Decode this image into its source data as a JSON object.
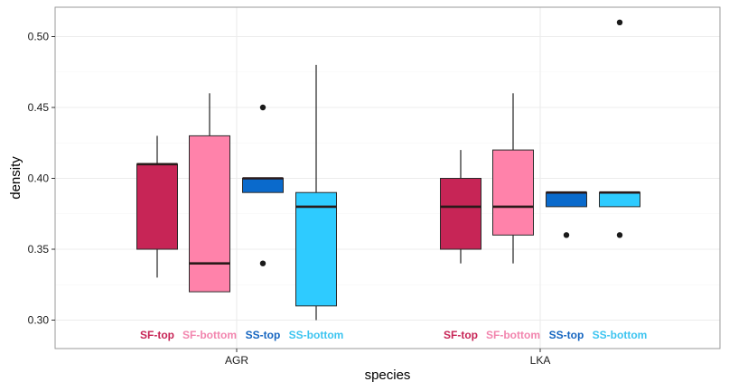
{
  "chart_data": {
    "type": "boxplot",
    "title": "",
    "xlabel": "species",
    "ylabel": "density",
    "categories": [
      "AGR",
      "LKA"
    ],
    "ylim": [
      0.28,
      0.52
    ],
    "yticks": [
      0.3,
      0.35,
      0.4,
      0.45,
      0.5
    ],
    "ytick_labels": [
      "0.30",
      "0.35",
      "0.40",
      "0.45",
      "0.50"
    ],
    "grid": true,
    "series": [
      {
        "name": "SF-top",
        "color": "#C72556",
        "boxes": [
          {
            "category": "AGR",
            "lower_whisker": 0.33,
            "q1": 0.35,
            "median": 0.41,
            "q3": 0.41,
            "upper_whisker": 0.43,
            "outliers": []
          },
          {
            "category": "LKA",
            "lower_whisker": 0.34,
            "q1": 0.35,
            "median": 0.38,
            "q3": 0.4,
            "upper_whisker": 0.42,
            "outliers": []
          }
        ]
      },
      {
        "name": "SF-bottom",
        "color": "#FF82AA",
        "boxes": [
          {
            "category": "AGR",
            "lower_whisker": 0.32,
            "q1": 0.32,
            "median": 0.34,
            "q3": 0.43,
            "upper_whisker": 0.46,
            "outliers": []
          },
          {
            "category": "LKA",
            "lower_whisker": 0.34,
            "q1": 0.36,
            "median": 0.38,
            "q3": 0.42,
            "upper_whisker": 0.46,
            "outliers": []
          }
        ]
      },
      {
        "name": "SS-top",
        "color": "#0A6ACC",
        "boxes": [
          {
            "category": "AGR",
            "lower_whisker": 0.39,
            "q1": 0.39,
            "median": 0.4,
            "q3": 0.4,
            "upper_whisker": 0.4,
            "outliers": [
              0.45,
              0.34
            ]
          },
          {
            "category": "LKA",
            "lower_whisker": 0.38,
            "q1": 0.38,
            "median": 0.39,
            "q3": 0.39,
            "upper_whisker": 0.39,
            "outliers": [
              0.36
            ]
          }
        ]
      },
      {
        "name": "SS-bottom",
        "color": "#2ECBFF",
        "boxes": [
          {
            "category": "AGR",
            "lower_whisker": 0.3,
            "q1": 0.31,
            "median": 0.38,
            "q3": 0.39,
            "upper_whisker": 0.48,
            "outliers": []
          },
          {
            "category": "LKA",
            "lower_whisker": 0.38,
            "q1": 0.38,
            "median": 0.39,
            "q3": 0.39,
            "upper_whisker": 0.39,
            "outliers": [
              0.51,
              0.36
            ]
          }
        ]
      }
    ],
    "group_labels": [
      {
        "text": "SF-top",
        "color": "#C72556"
      },
      {
        "text": "SF-bottom",
        "color": "#F285AE"
      },
      {
        "text": "SS-top",
        "color": "#1565C0"
      },
      {
        "text": "SS-bottom",
        "color": "#3CC4F0"
      }
    ]
  }
}
